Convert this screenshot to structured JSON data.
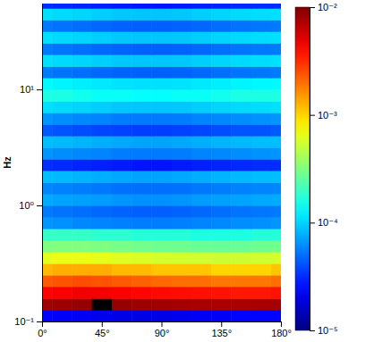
{
  "chart_data": {
    "type": "heatmap",
    "y_label": "Hz",
    "log": "y",
    "xlim": [
      0,
      180
    ],
    "ylim": [
      0.1,
      55
    ],
    "xticks": [
      {
        "value": 0,
        "label": "0°"
      },
      {
        "value": 45,
        "label": "45°"
      },
      {
        "value": 90,
        "label": "90°"
      },
      {
        "value": 135,
        "label": "135°"
      },
      {
        "value": 180,
        "label": "180°"
      }
    ],
    "yticks": [
      {
        "value": 0.1,
        "label": "10⁻¹"
      },
      {
        "value": 1,
        "label": "10⁰"
      },
      {
        "value": 10,
        "label": "10¹"
      }
    ],
    "xbins": [
      0,
      7.5,
      22.5,
      37.5,
      52.5,
      67.5,
      82.5,
      97.5,
      112.5,
      127.5,
      142.5,
      157.5,
      172.5,
      180
    ],
    "ybins": [
      0.1,
      0.126,
      0.158,
      0.2,
      0.251,
      0.316,
      0.398,
      0.501,
      0.631,
      0.794,
      1,
      1.26,
      1.58,
      2,
      2.51,
      3.16,
      3.98,
      5.01,
      6.31,
      7.94,
      10,
      12.6,
      15.8,
      20,
      25.1,
      31.6,
      39.8,
      50.1,
      55
    ],
    "cells": [
      [
        2.4e-05,
        2.3e-05,
        2.2e-05,
        2.1e-05,
        2e-05,
        2e-05,
        2e-05,
        2.1e-05,
        2.2e-05,
        2.3e-05,
        2.4e-05,
        2.4e-05,
        2.4e-05
      ],
      [
        0.008,
        0.0082,
        0.0085,
        0.015,
        0.0085,
        0.0082,
        0.008,
        0.0078,
        0.0076,
        0.0075,
        0.0075,
        0.0076,
        0.0078
      ],
      [
        0.0042,
        0.0044,
        0.0046,
        0.0045,
        0.0043,
        0.0041,
        0.004,
        0.0039,
        0.0038,
        0.0037,
        0.0036,
        0.0036,
        0.0037
      ],
      [
        0.0023,
        0.0024,
        0.0025,
        0.0024,
        0.0023,
        0.0022,
        0.0021,
        0.002,
        0.002,
        0.0019,
        0.0019,
        0.0019,
        0.002
      ],
      [
        0.0012,
        0.0013,
        0.0013,
        0.0013,
        0.0012,
        0.0012,
        0.0011,
        0.0011,
        0.0011,
        0.001,
        0.001,
        0.001,
        0.0011
      ],
      [
        0.00062,
        0.00065,
        0.00065,
        0.00063,
        0.0006,
        0.00058,
        0.00056,
        0.00055,
        0.00054,
        0.00053,
        0.00053,
        0.00054,
        0.00056
      ],
      [
        0.00031,
        0.00032,
        0.00032,
        0.00031,
        0.0003,
        0.00029,
        0.00028,
        0.00028,
        0.00027,
        0.00027,
        0.00027,
        0.00028,
        0.00029
      ],
      [
        0.00019,
        0.00019,
        0.00019,
        0.00018,
        0.00018,
        0.00017,
        0.00017,
        0.00017,
        0.00016,
        0.00016,
        0.00016,
        0.00017,
        0.00017
      ],
      [
        6.5e-05,
        6.3e-05,
        6e-05,
        5.8e-05,
        5.6e-05,
        5.5e-05,
        5.5e-05,
        5.6e-05,
        5.8e-05,
        6e-05,
        6.2e-05,
        6.3e-05,
        6.5e-05
      ],
      [
        5.4e-05,
        5.2e-05,
        5e-05,
        4.8e-05,
        4.6e-05,
        4.5e-05,
        4.5e-05,
        4.6e-05,
        4.8e-05,
        5e-05,
        5.2e-05,
        5.3e-05,
        5.4e-05
      ],
      [
        7.5e-05,
        7.2e-05,
        7e-05,
        6.8e-05,
        6.5e-05,
        6.3e-05,
        6.3e-05,
        6.5e-05,
        6.8e-05,
        7e-05,
        7.2e-05,
        7.4e-05,
        7.5e-05
      ],
      [
        5.9e-05,
        5.7e-05,
        5.5e-05,
        5.3e-05,
        5.1e-05,
        5e-05,
        5e-05,
        5.1e-05,
        5.3e-05,
        5.5e-05,
        5.7e-05,
        5.8e-05,
        5.9e-05
      ],
      [
        8.6e-05,
        8.3e-05,
        8e-05,
        7.7e-05,
        7.4e-05,
        7.2e-05,
        7.2e-05,
        7.4e-05,
        7.7e-05,
        8e-05,
        8.3e-05,
        8.5e-05,
        8.6e-05
      ],
      [
        3.2e-05,
        3.1e-05,
        3e-05,
        2.9e-05,
        2.8e-05,
        2.7e-05,
        2.7e-05,
        2.8e-05,
        2.9e-05,
        3e-05,
        3.1e-05,
        3.2e-05,
        3.2e-05
      ],
      [
        6.5e-05,
        6.2e-05,
        6e-05,
        5.8e-05,
        5.5e-05,
        5.4e-05,
        5.4e-05,
        5.5e-05,
        5.8e-05,
        6e-05,
        6.2e-05,
        6.4e-05,
        6.5e-05
      ],
      [
        8.6e-05,
        8.3e-05,
        8e-05,
        7.7e-05,
        7.4e-05,
        7.2e-05,
        7.2e-05,
        7.4e-05,
        7.7e-05,
        8e-05,
        8.3e-05,
        8.5e-05,
        8.6e-05
      ],
      [
        4.3e-05,
        4.2e-05,
        4e-05,
        3.8e-05,
        3.7e-05,
        3.6e-05,
        3.6e-05,
        3.7e-05,
        3.8e-05,
        4e-05,
        4.2e-05,
        4.2e-05,
        4.3e-05
      ],
      [
        6.5e-05,
        6.2e-05,
        6e-05,
        5.8e-05,
        5.5e-05,
        5.4e-05,
        5.4e-05,
        5.5e-05,
        5.8e-05,
        6e-05,
        6.2e-05,
        6.4e-05,
        6.5e-05
      ],
      [
        0.000108,
        0.000104,
        0.0001,
        9.6e-05,
        9.2e-05,
        9e-05,
        9e-05,
        9.2e-05,
        9.6e-05,
        0.0001,
        0.000104,
        0.000106,
        0.000108
      ],
      [
        0.00016,
        0.00016,
        0.00015,
        0.00014,
        0.00014,
        0.000135,
        0.000135,
        0.00014,
        0.00014,
        0.00015,
        0.00016,
        0.00016,
        0.00016
      ],
      [
        0.00013,
        0.000125,
        0.00012,
        0.000115,
        0.00011,
        0.000108,
        0.000108,
        0.00011,
        0.000115,
        0.00012,
        0.000125,
        0.000127,
        0.00013
      ],
      [
        5.4e-05,
        5.2e-05,
        5e-05,
        4.8e-05,
        4.6e-05,
        4.5e-05,
        4.5e-05,
        4.6e-05,
        4.8e-05,
        5e-05,
        5.2e-05,
        5.3e-05,
        5.4e-05
      ],
      [
        0.000108,
        0.000104,
        0.0001,
        9.6e-05,
        9.2e-05,
        9e-05,
        9e-05,
        9.2e-05,
        9.6e-05,
        0.0001,
        0.000104,
        0.000106,
        0.000108
      ],
      [
        5.4e-05,
        5.2e-05,
        5e-05,
        4.8e-05,
        4.6e-05,
        4.5e-05,
        4.5e-05,
        4.6e-05,
        4.8e-05,
        5e-05,
        5.2e-05,
        5.3e-05,
        5.4e-05
      ],
      [
        0.000108,
        0.000104,
        0.0001,
        9.6e-05,
        9.2e-05,
        9e-05,
        9e-05,
        9.2e-05,
        9.6e-05,
        0.0001,
        0.000104,
        0.000106,
        0.000108
      ],
      [
        5.4e-05,
        5.2e-05,
        5e-05,
        4.8e-05,
        4.6e-05,
        4.5e-05,
        4.5e-05,
        4.6e-05,
        4.8e-05,
        5e-05,
        5.2e-05,
        5.3e-05,
        5.4e-05
      ],
      [
        0.000108,
        0.000104,
        0.0001,
        9.6e-05,
        9.2e-05,
        9e-05,
        9e-05,
        9.2e-05,
        9.6e-05,
        0.0001,
        0.000104,
        0.000106,
        0.000108
      ],
      [
        3.2e-05,
        3.1e-05,
        3e-05,
        2.9e-05,
        2.8e-05,
        2.7e-05,
        2.7e-05,
        2.8e-05,
        2.9e-05,
        3e-05,
        3.1e-05,
        3.2e-05,
        3.2e-05
      ]
    ],
    "colorbar_range": [
      1e-05,
      0.01
    ],
    "colorbar_ticks": [
      {
        "value": 1e-05,
        "label": "10⁻⁵"
      },
      {
        "value": 0.0001,
        "label": "10⁻⁴"
      },
      {
        "value": 0.001,
        "label": "10⁻³"
      },
      {
        "value": 0.01,
        "label": "10⁻²"
      }
    ]
  }
}
